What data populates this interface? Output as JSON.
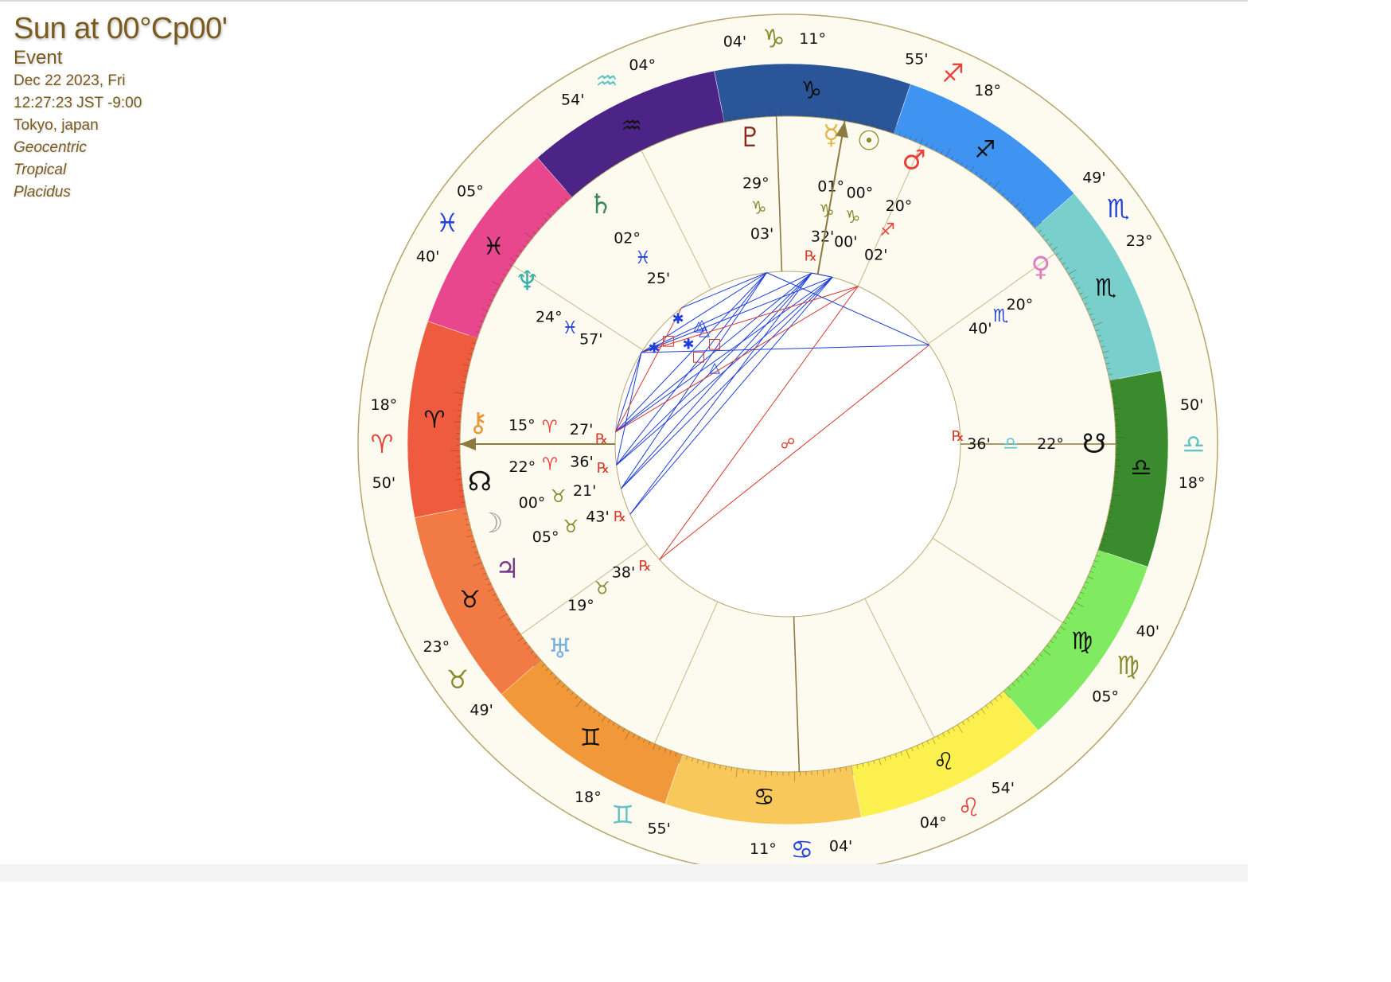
{
  "header": {
    "title": "Sun at 00°Cp00'",
    "kind": "Event",
    "date": "Dec 22 2023, Fri",
    "time": "12:27:23 JST -9:00",
    "place": "Tokyo, japan",
    "zodiac_center": "Geocentric",
    "zodiac_type": "Tropical",
    "house_system": "Placidus"
  },
  "colors": {
    "text_brown": "#7a5c20",
    "outer_background": "#fdfbf0",
    "aspect_blue": "#1f3fd9",
    "aspect_red": "#d93a2a",
    "axis_line": "#8c7a3e"
  },
  "signs": [
    {
      "name": "Aries",
      "glyph": "♈",
      "color": "#ee5b3e",
      "symbol_color": "#e8423a"
    },
    {
      "name": "Taurus",
      "glyph": "♉",
      "color": "#f27a45",
      "symbol_color": "#8a8a2e"
    },
    {
      "name": "Gemini",
      "glyph": "♊",
      "color": "#f0983a",
      "symbol_color": "#63c3c6"
    },
    {
      "name": "Cancer",
      "glyph": "♋",
      "color": "#f8c95a",
      "symbol_color": "#2444d8"
    },
    {
      "name": "Leo",
      "glyph": "♌",
      "color": "#fbf04e",
      "symbol_color": "#e8423a"
    },
    {
      "name": "Virgo",
      "glyph": "♍",
      "color": "#80ea60",
      "symbol_color": "#8a8a2e"
    },
    {
      "name": "Libra",
      "glyph": "♎",
      "color": "#3a8a2e",
      "symbol_color": "#63c3c6"
    },
    {
      "name": "Scorpio",
      "glyph": "♏",
      "color": "#78cfcb",
      "symbol_color": "#2444d8"
    },
    {
      "name": "Sagittarius",
      "glyph": "♐",
      "color": "#3f94f2",
      "symbol_color": "#e8423a"
    },
    {
      "name": "Capricorn",
      "glyph": "♑",
      "color": "#2a5598",
      "symbol_color": "#8a8a2e"
    },
    {
      "name": "Aquarius",
      "glyph": "♒",
      "color": "#4c2488",
      "symbol_color": "#63c3c6"
    },
    {
      "name": "Pisces",
      "glyph": "♓",
      "color": "#e8478e",
      "symbol_color": "#2444d8"
    }
  ],
  "house_cusps": [
    {
      "house": 1,
      "deg": "18°",
      "glyph": "♈",
      "color": "#e8423a",
      "min": "50'"
    },
    {
      "house": 2,
      "deg": "23°",
      "glyph": "♉",
      "color": "#8a8a2e",
      "min": "49'"
    },
    {
      "house": 3,
      "deg": "18°",
      "glyph": "♊",
      "color": "#63c3c6",
      "min": "55'"
    },
    {
      "house": 4,
      "deg": "11°",
      "glyph": "♋",
      "color": "#2444d8",
      "min": "04'"
    },
    {
      "house": 5,
      "deg": "04°",
      "glyph": "♌",
      "color": "#e8423a",
      "min": "54'"
    },
    {
      "house": 6,
      "deg": "05°",
      "glyph": "♍",
      "color": "#8a8a2e",
      "min": "40'"
    },
    {
      "house": 7,
      "deg": "18°",
      "glyph": "♎",
      "color": "#63c3c6",
      "min": "50'"
    },
    {
      "house": 8,
      "deg": "23°",
      "glyph": "♏",
      "color": "#2444d8",
      "min": "49'"
    },
    {
      "house": 9,
      "deg": "18°",
      "glyph": "♐",
      "color": "#e8423a",
      "min": "55'"
    },
    {
      "house": 10,
      "deg": "11°",
      "glyph": "♑",
      "color": "#8a8a2e",
      "min": "04'"
    },
    {
      "house": 11,
      "deg": "04°",
      "glyph": "♒",
      "color": "#63c3c6",
      "min": "54'"
    },
    {
      "house": 12,
      "deg": "05°",
      "glyph": "♓",
      "color": "#2444d8",
      "min": "40'"
    }
  ],
  "planets": [
    {
      "name": "Pluto",
      "glyph": "♇",
      "color": "#8b2a1a",
      "deg": "29°",
      "sign_glyph": "♑",
      "sign_color": "#8a8a2e",
      "min": "03'",
      "retro": ""
    },
    {
      "name": "Mercury",
      "glyph": "☿",
      "color": "#e0b84a",
      "deg": "01°",
      "sign_glyph": "♑",
      "sign_color": "#8a8a2e",
      "min": "32'",
      "retro": "℞"
    },
    {
      "name": "Sun",
      "glyph": "☉",
      "color": "#8a8a2e",
      "deg": "00°",
      "sign_glyph": "♑",
      "sign_color": "#8a8a2e",
      "min": "00'",
      "retro": ""
    },
    {
      "name": "Mars",
      "glyph": "♂",
      "color": "#e8423a",
      "deg": "20°",
      "sign_glyph": "♐",
      "sign_color": "#e8423a",
      "min": "02'",
      "retro": ""
    },
    {
      "name": "Venus",
      "glyph": "♀",
      "color": "#e27ec0",
      "deg": "20°",
      "sign_glyph": "♏",
      "sign_color": "#2444d8",
      "min": "40'",
      "retro": ""
    },
    {
      "name": "South Node",
      "glyph": "☋",
      "color": "#111111",
      "deg": "22°",
      "sign_glyph": "♎",
      "sign_color": "#63c3c6",
      "min": "36'",
      "retro": "℞"
    },
    {
      "name": "Saturn",
      "glyph": "♄",
      "color": "#3a8a5a",
      "deg": "02°",
      "sign_glyph": "♓",
      "sign_color": "#2444d8",
      "min": "25'",
      "retro": ""
    },
    {
      "name": "Neptune",
      "glyph": "♆",
      "color": "#3ab0a8",
      "deg": "24°",
      "sign_glyph": "♓",
      "sign_color": "#2444d8",
      "min": "57'",
      "retro": ""
    },
    {
      "name": "Chiron",
      "glyph": "⚷",
      "color": "#e8963a",
      "deg": "15°",
      "sign_glyph": "♈",
      "sign_color": "#e8423a",
      "min": "27'",
      "retro": "℞"
    },
    {
      "name": "North Node",
      "glyph": "☊",
      "color": "#111111",
      "deg": "22°",
      "sign_glyph": "♈",
      "sign_color": "#e8423a",
      "min": "36'",
      "retro": "℞"
    },
    {
      "name": "Moon",
      "glyph": "☽",
      "color": "#9a9a9a",
      "deg": "00°",
      "sign_glyph": "♉",
      "sign_color": "#8a8a2e",
      "min": "21'",
      "retro": ""
    },
    {
      "name": "Jupiter",
      "glyph": "♃",
      "color": "#7a3a8a",
      "deg": "05°",
      "sign_glyph": "♉",
      "sign_color": "#8a8a2e",
      "min": "43'",
      "retro": "℞"
    },
    {
      "name": "Uranus",
      "glyph": "♅",
      "color": "#7ab0e0",
      "deg": "19°",
      "sign_glyph": "♉",
      "sign_color": "#8a8a2e",
      "min": "38'",
      "retro": "℞"
    }
  ],
  "aspect_glyphs": [
    {
      "glyph": "✱",
      "color": "#1f3fd9"
    },
    {
      "glyph": "✱",
      "color": "#1f3fd9"
    },
    {
      "glyph": "✱",
      "color": "#1f3fd9"
    },
    {
      "glyph": "□",
      "color": "#d93a2a"
    },
    {
      "glyph": "□",
      "color": "#d93a2a"
    },
    {
      "glyph": "□",
      "color": "#d93a2a"
    },
    {
      "glyph": "△",
      "color": "#1f3fd9"
    },
    {
      "glyph": "△",
      "color": "#1f3fd9"
    },
    {
      "glyph": "△",
      "color": "#1f3fd9"
    },
    {
      "glyph": "△",
      "color": "#1f3fd9"
    },
    {
      "glyph": "☍",
      "color": "#d93a2a"
    }
  ]
}
